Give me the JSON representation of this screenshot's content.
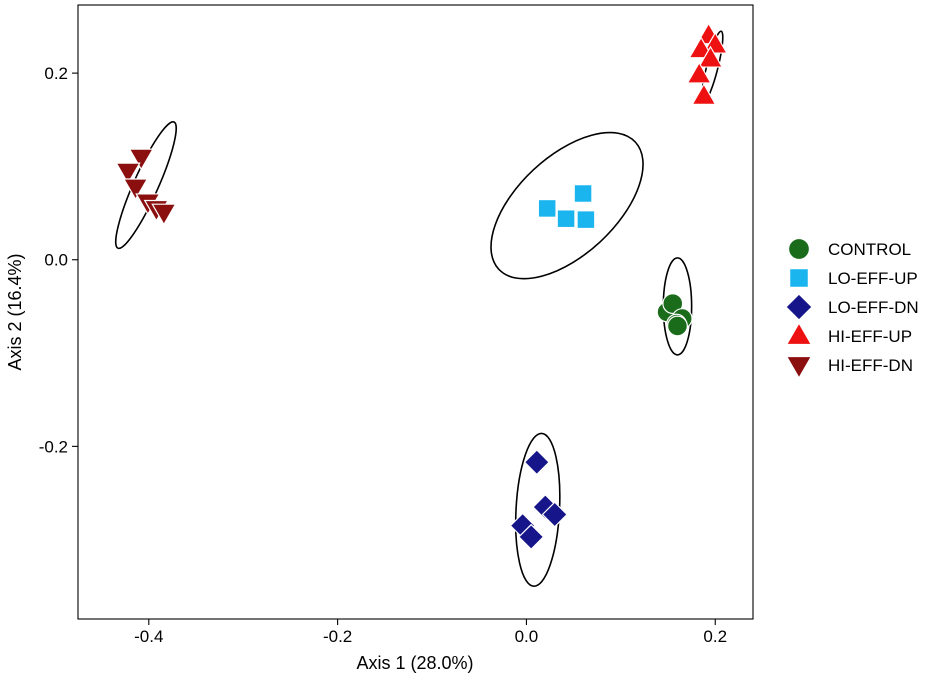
{
  "chart_data": {
    "type": "scatter",
    "title": "",
    "xlabel": "Axis 1 (28.0%)",
    "ylabel": "Axis 2 (16.4%)",
    "xlim": [
      -0.475,
      0.24
    ],
    "ylim": [
      -0.385,
      0.273
    ],
    "xticks": [
      -0.4,
      -0.2,
      0.0,
      0.2
    ],
    "xtick_labels": [
      "-0.4",
      "-0.2",
      "0.0",
      "0.2"
    ],
    "yticks": [
      -0.2,
      0.0,
      0.2
    ],
    "ytick_labels": [
      "-0.2",
      "0.0",
      "0.2"
    ],
    "grid": false,
    "legend_position": "right",
    "series": [
      {
        "name": "CONTROL",
        "shape": "circle",
        "color": "#1a6b1a",
        "points": [
          [
            0.149,
            -0.056
          ],
          [
            0.155,
            -0.047
          ],
          [
            0.165,
            -0.063
          ],
          [
            0.159,
            -0.069
          ],
          [
            0.16,
            -0.071
          ]
        ],
        "ellipse": {
          "cx": 0.16,
          "cy": -0.05,
          "rx": 0.015,
          "ry": 0.052,
          "angle_deg": 0
        }
      },
      {
        "name": "LO-EFF-UP",
        "shape": "square",
        "color": "#1ab5ee",
        "points": [
          [
            0.022,
            0.055
          ],
          [
            0.042,
            0.044
          ],
          [
            0.06,
            0.071
          ],
          [
            0.063,
            0.043
          ]
        ],
        "ellipse": {
          "cx": 0.043,
          "cy": 0.058,
          "rx": 0.052,
          "ry": 0.1,
          "angle_deg": 47
        }
      },
      {
        "name": "LO-EFF-DN",
        "shape": "diamond",
        "color": "#16168a",
        "points": [
          [
            0.011,
            -0.217
          ],
          [
            0.02,
            -0.265
          ],
          [
            0.03,
            -0.273
          ],
          [
            -0.004,
            -0.285
          ],
          [
            0.005,
            -0.297
          ]
        ],
        "ellipse": {
          "cx": 0.012,
          "cy": -0.268,
          "rx": 0.023,
          "ry": 0.082,
          "angle_deg": 3
        }
      },
      {
        "name": "HI-EFF-UP",
        "shape": "triangle-up",
        "color": "#ee1111",
        "points": [
          [
            0.193,
            0.24
          ],
          [
            0.2,
            0.23
          ],
          [
            0.185,
            0.225
          ],
          [
            0.195,
            0.215
          ],
          [
            0.183,
            0.198
          ],
          [
            0.188,
            0.175
          ]
        ],
        "ellipse": {
          "cx": 0.197,
          "cy": 0.207,
          "rx": 0.006,
          "ry": 0.039,
          "angle_deg": 14
        }
      },
      {
        "name": "HI-EFF-DN",
        "shape": "triangle-down",
        "color": "#8b0f0f",
        "points": [
          [
            -0.408,
            0.11
          ],
          [
            -0.422,
            0.095
          ],
          [
            -0.414,
            0.078
          ],
          [
            -0.401,
            0.062
          ],
          [
            -0.392,
            0.055
          ],
          [
            -0.384,
            0.051
          ]
        ],
        "ellipse": {
          "cx": -0.403,
          "cy": 0.08,
          "rx": 0.013,
          "ry": 0.074,
          "angle_deg": 24
        }
      }
    ]
  }
}
